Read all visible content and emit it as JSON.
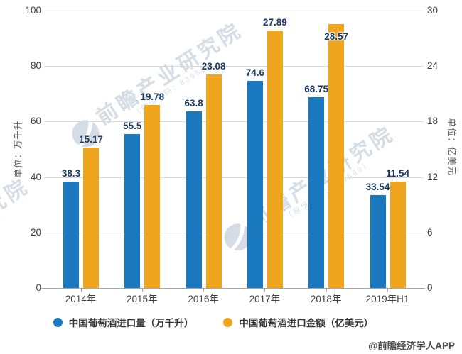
{
  "chart_data": {
    "type": "bar",
    "title": "",
    "categories": [
      "2014年",
      "2015年",
      "2016年",
      "2017年",
      "2018年",
      "2019年H1"
    ],
    "series": [
      {
        "name": "中国葡萄酒进口量（万千升）",
        "axis": "left",
        "color": "#1a78be",
        "values": [
          38.3,
          55.5,
          63.8,
          74.6,
          68.75,
          33.54
        ],
        "labels": [
          "38.3",
          "55.5",
          "63.8",
          "74.6",
          "68.75",
          "33.54"
        ],
        "label_inside": [
          false,
          false,
          false,
          false,
          false,
          false
        ]
      },
      {
        "name": "中国葡萄酒进口金额（亿美元）",
        "axis": "right",
        "color": "#f0a51f",
        "values": [
          15.17,
          19.78,
          23.08,
          27.89,
          28.57,
          11.54
        ],
        "labels": [
          "15.17",
          "19.78",
          "23.08",
          "27.89",
          "28.57",
          "11.54"
        ],
        "label_inside": [
          false,
          false,
          false,
          false,
          true,
          false
        ]
      }
    ],
    "left_axis": {
      "title": "单位：万千升",
      "min": 0,
      "max": 100,
      "step": 20,
      "ticks": [
        100,
        80,
        60,
        40,
        20,
        0
      ]
    },
    "right_axis": {
      "title": "单位：亿美元",
      "min": 0,
      "max": 30,
      "step": 6,
      "ticks": [
        30,
        24,
        18,
        12,
        6,
        0
      ]
    },
    "grid": true,
    "legend_position": "bottom"
  },
  "legend": {
    "items": [
      {
        "label": "中国葡萄酒进口量（万千升）",
        "color": "#1a78be"
      },
      {
        "label": "中国葡萄酒进口金额（亿美元）",
        "color": "#f0a51f"
      }
    ]
  },
  "watermark": {
    "logo": "qianzhan-globe-icon",
    "big_text": "前瞻产业研究院",
    "small_text": "（股份代码：839599）"
  },
  "attribution": "@前瞻经济学人APP",
  "colors": {
    "bar_blue": "#1a78be",
    "bar_orange": "#f0a51f",
    "gridline": "#d9d9d9",
    "axis_line": "#a6a6a6",
    "tick_text": "#404040",
    "value_label": "#1b3a63",
    "axis_title": "#595959",
    "legend_text": "#333333",
    "watermark": "#8fa8bc",
    "attribution": "#4d4d4d"
  }
}
